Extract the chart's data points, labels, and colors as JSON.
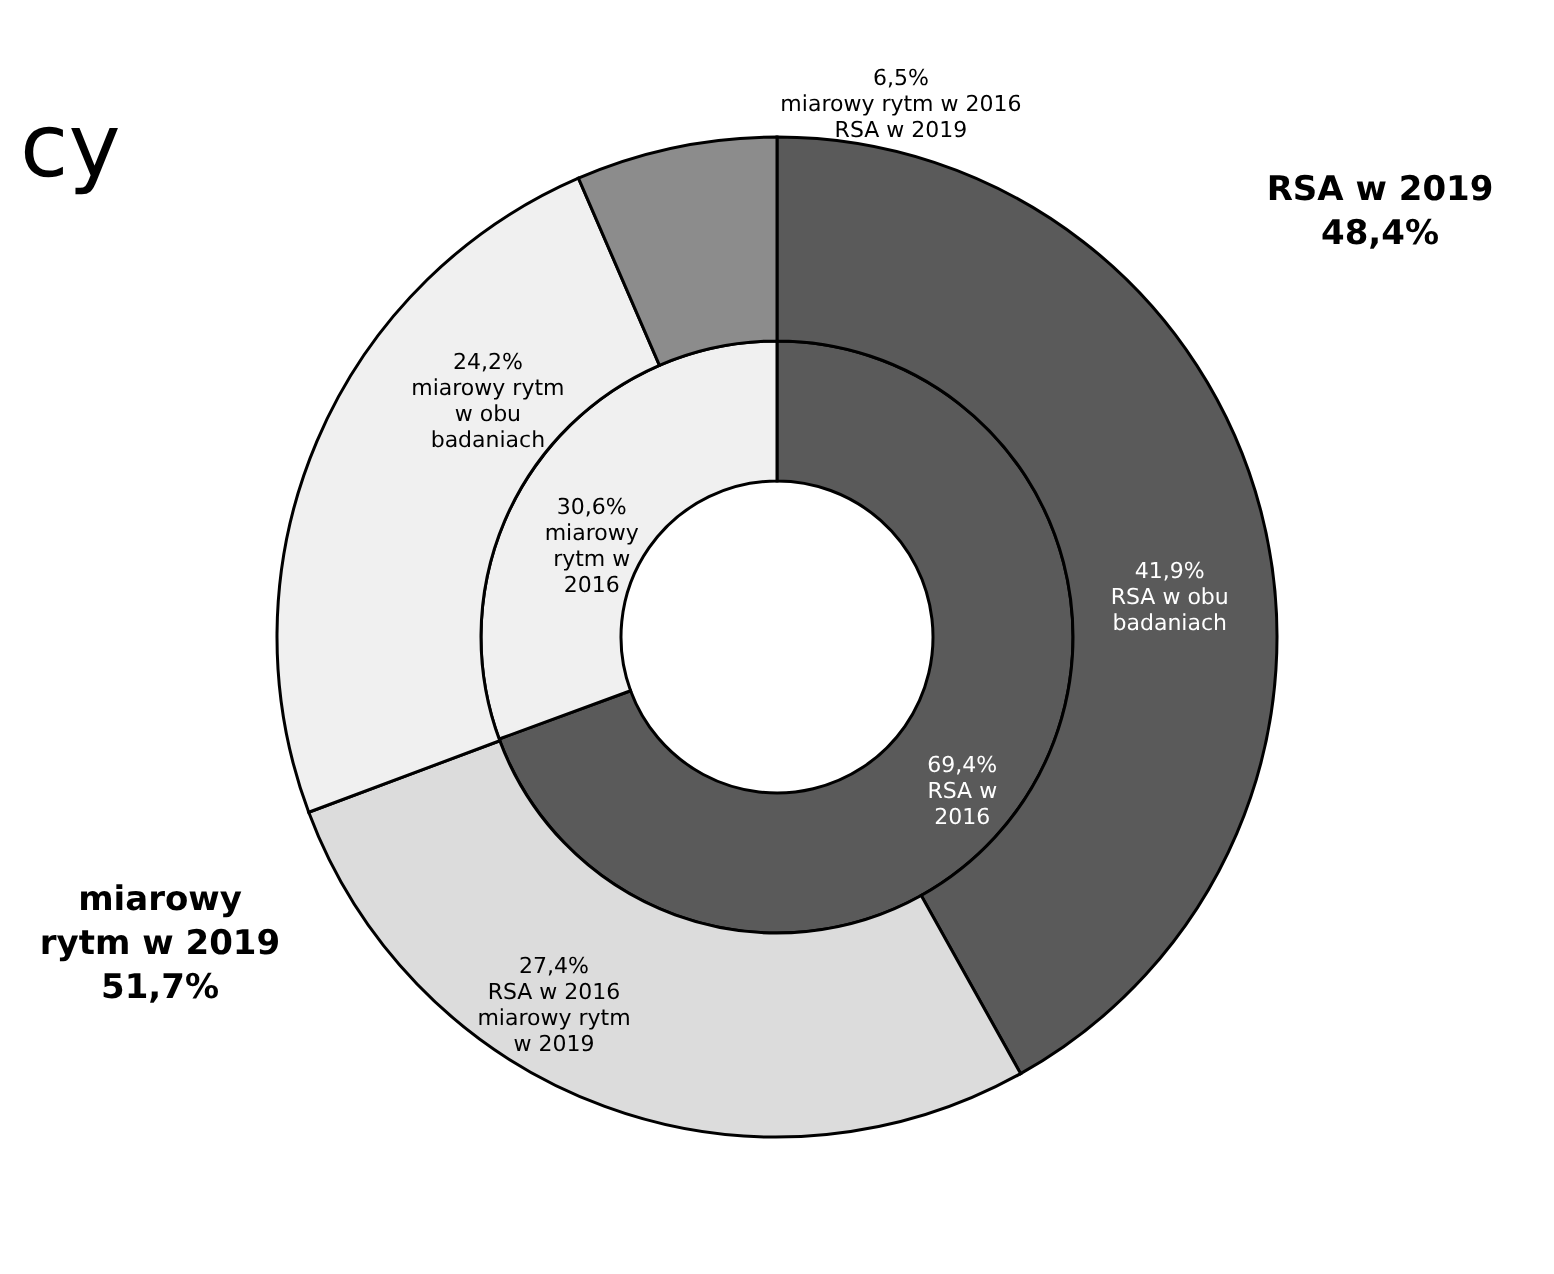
{
  "chart_data": [
    {
      "type": "donut",
      "title": "cy",
      "categories": [
        "RSA w 2016",
        "miarowy rytm w 2016"
      ],
      "values": [
        69.4,
        30.6
      ],
      "value_labels": [
        "69,4%",
        "30,6%"
      ],
      "colors": [
        "#5a5a5a",
        "#f0f0f0"
      ]
    },
    {
      "type": "donut",
      "categories": [
        "RSA w obu badaniach",
        "RSA w 2016 miarowy rytm w 2019",
        "miarowy rytm w obu badaniach",
        "miarowy rytm w 2016 RSA w 2019"
      ],
      "values": [
        41.9,
        27.4,
        24.2,
        6.5
      ],
      "value_labels": [
        "41,9%",
        "27,4%",
        "24,2%",
        "6,5%"
      ],
      "colors": [
        "#5a5a5a",
        "#dcdcdc",
        "#f0f0f0",
        "#8c8c8c"
      ],
      "annotations": [
        "RSA w 2019\n48,4%",
        "miarowy\nrytm w 2019\n51,7%"
      ]
    }
  ]
}
